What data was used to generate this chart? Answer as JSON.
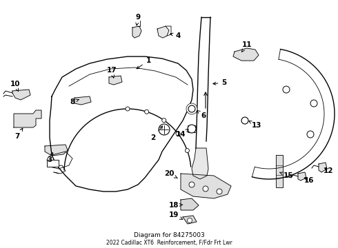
{
  "title": "2022 Cadillac XT6",
  "subtitle": "Reinforcement, F/Fdr Frt Lwr",
  "part_number": "84275003",
  "background_color": "#ffffff",
  "line_color": "#000000",
  "text_color": "#000000",
  "fig_width": 4.9,
  "fig_height": 3.6,
  "dpi": 100,
  "label_fontsize": 7.5,
  "lw_main": 1.0,
  "lw_thin": 0.6
}
